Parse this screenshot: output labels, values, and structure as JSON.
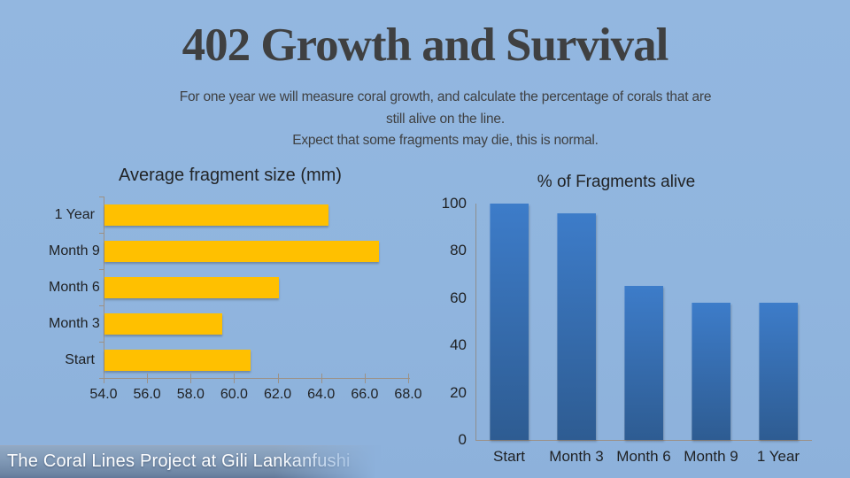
{
  "title": "402 Growth and Survival",
  "subtitle": {
    "line1": "For one year we will measure coral growth, and calculate the percentage of corals that are",
    "line2": "still alive on the line.",
    "line3": "Expect that some fragments may die, this is normal."
  },
  "footer": {
    "text": "The Coral Lines Project at Gili Lankanfushi"
  },
  "colors": {
    "background": "#90B5DE",
    "title_text": "#3F4041",
    "chart_text": "#1F2123",
    "axis": "#9C9186",
    "bar_yellow": "#FFC000",
    "bar_blue_top": "#3D7CC9",
    "bar_blue_bottom": "#2E5C92",
    "footer_band": "#7E96B3",
    "footer_text": "#FDFEFF"
  },
  "chart_data": [
    {
      "type": "bar",
      "orientation": "horizontal",
      "title": "Average fragment size (mm)",
      "categories": [
        "1 Year",
        "Month 9",
        "Month 6",
        "Month 3",
        "Start"
      ],
      "values": [
        64.3,
        66.6,
        62.0,
        59.4,
        60.7
      ],
      "xlabel": "",
      "ylabel": "",
      "xlim": [
        54.0,
        68.0
      ],
      "xtick_labels": [
        "54.0",
        "56.0",
        "58.0",
        "60.0",
        "62.0",
        "64.0",
        "66.0",
        "68.0"
      ],
      "grid": false,
      "legend": "none",
      "bar_color": "#FFC000",
      "axis_color": "#9C9186"
    },
    {
      "type": "bar",
      "orientation": "vertical",
      "title": "% of Fragments alive",
      "categories": [
        "Start",
        "Month 3",
        "Month 6",
        "Month 9",
        "1 Year"
      ],
      "values": [
        100,
        96,
        65,
        58,
        58
      ],
      "xlabel": "",
      "ylabel": "",
      "ylim": [
        0,
        100
      ],
      "ytick_values": [
        0,
        20,
        40,
        60,
        80,
        100
      ],
      "grid": false,
      "legend": "none",
      "bar_color_top": "#3D7CC9",
      "bar_color_bottom": "#2E5C92",
      "axis_color": "#9C9186"
    }
  ]
}
